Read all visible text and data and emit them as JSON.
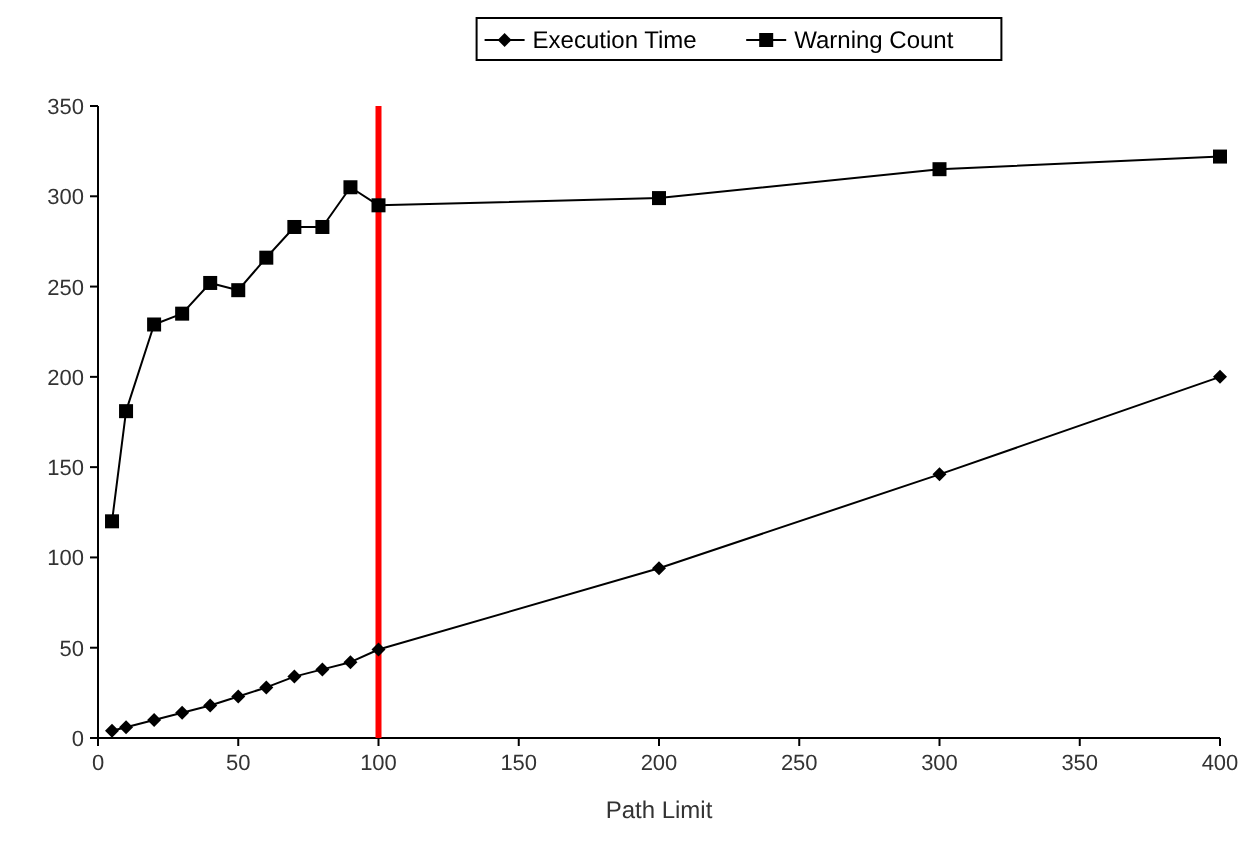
{
  "chart_data": {
    "type": "line",
    "xlabel": "Path Limit",
    "xlim": [
      0,
      400
    ],
    "xticks": [
      0,
      50,
      100,
      150,
      200,
      250,
      300,
      350,
      400
    ],
    "ylim": [
      0,
      350
    ],
    "yticks": [
      0,
      50,
      100,
      150,
      200,
      250,
      300,
      350
    ],
    "grid": false,
    "legend": "top",
    "series": [
      {
        "name": "Execution Time",
        "color": "#000000",
        "marker": "diamond",
        "x": [
          5,
          10,
          20,
          30,
          40,
          50,
          60,
          70,
          80,
          90,
          100,
          200,
          300,
          400
        ],
        "values": [
          4,
          6,
          10,
          14,
          18,
          23,
          28,
          34,
          38,
          42,
          49,
          94,
          146,
          200
        ]
      },
      {
        "name": "Warning Count",
        "color": "#000000",
        "marker": "square",
        "x": [
          5,
          10,
          20,
          30,
          40,
          50,
          60,
          70,
          80,
          90,
          100,
          200,
          300,
          400
        ],
        "values": [
          120,
          181,
          229,
          235,
          252,
          248,
          266,
          283,
          283,
          305,
          295,
          299,
          315,
          322
        ]
      }
    ],
    "ref_lines": [
      {
        "axis": "x",
        "value": 100,
        "label": null,
        "color": "#ff0000"
      }
    ]
  }
}
